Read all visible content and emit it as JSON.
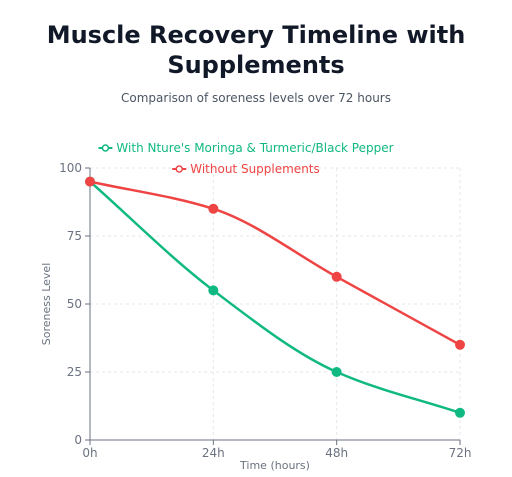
{
  "chart_data": {
    "type": "line",
    "title": "Muscle Recovery Timeline with Supplements",
    "subtitle": "Comparison of soreness levels over 72 hours",
    "xlabel": "Time (hours)",
    "ylabel": "Soreness Level",
    "categories": [
      "0h",
      "24h",
      "48h",
      "72h"
    ],
    "ylim": [
      0,
      100
    ],
    "yticks": [
      0,
      25,
      50,
      75,
      100
    ],
    "grid": true,
    "legend_position": "top",
    "series": [
      {
        "name": "With Nture's Moringa & Turmeric/Black Pepper",
        "values": [
          95,
          55,
          25,
          10
        ],
        "color": "#10b981"
      },
      {
        "name": "Without Supplements",
        "values": [
          95,
          85,
          60,
          35
        ],
        "color": "#ef4444"
      }
    ]
  }
}
